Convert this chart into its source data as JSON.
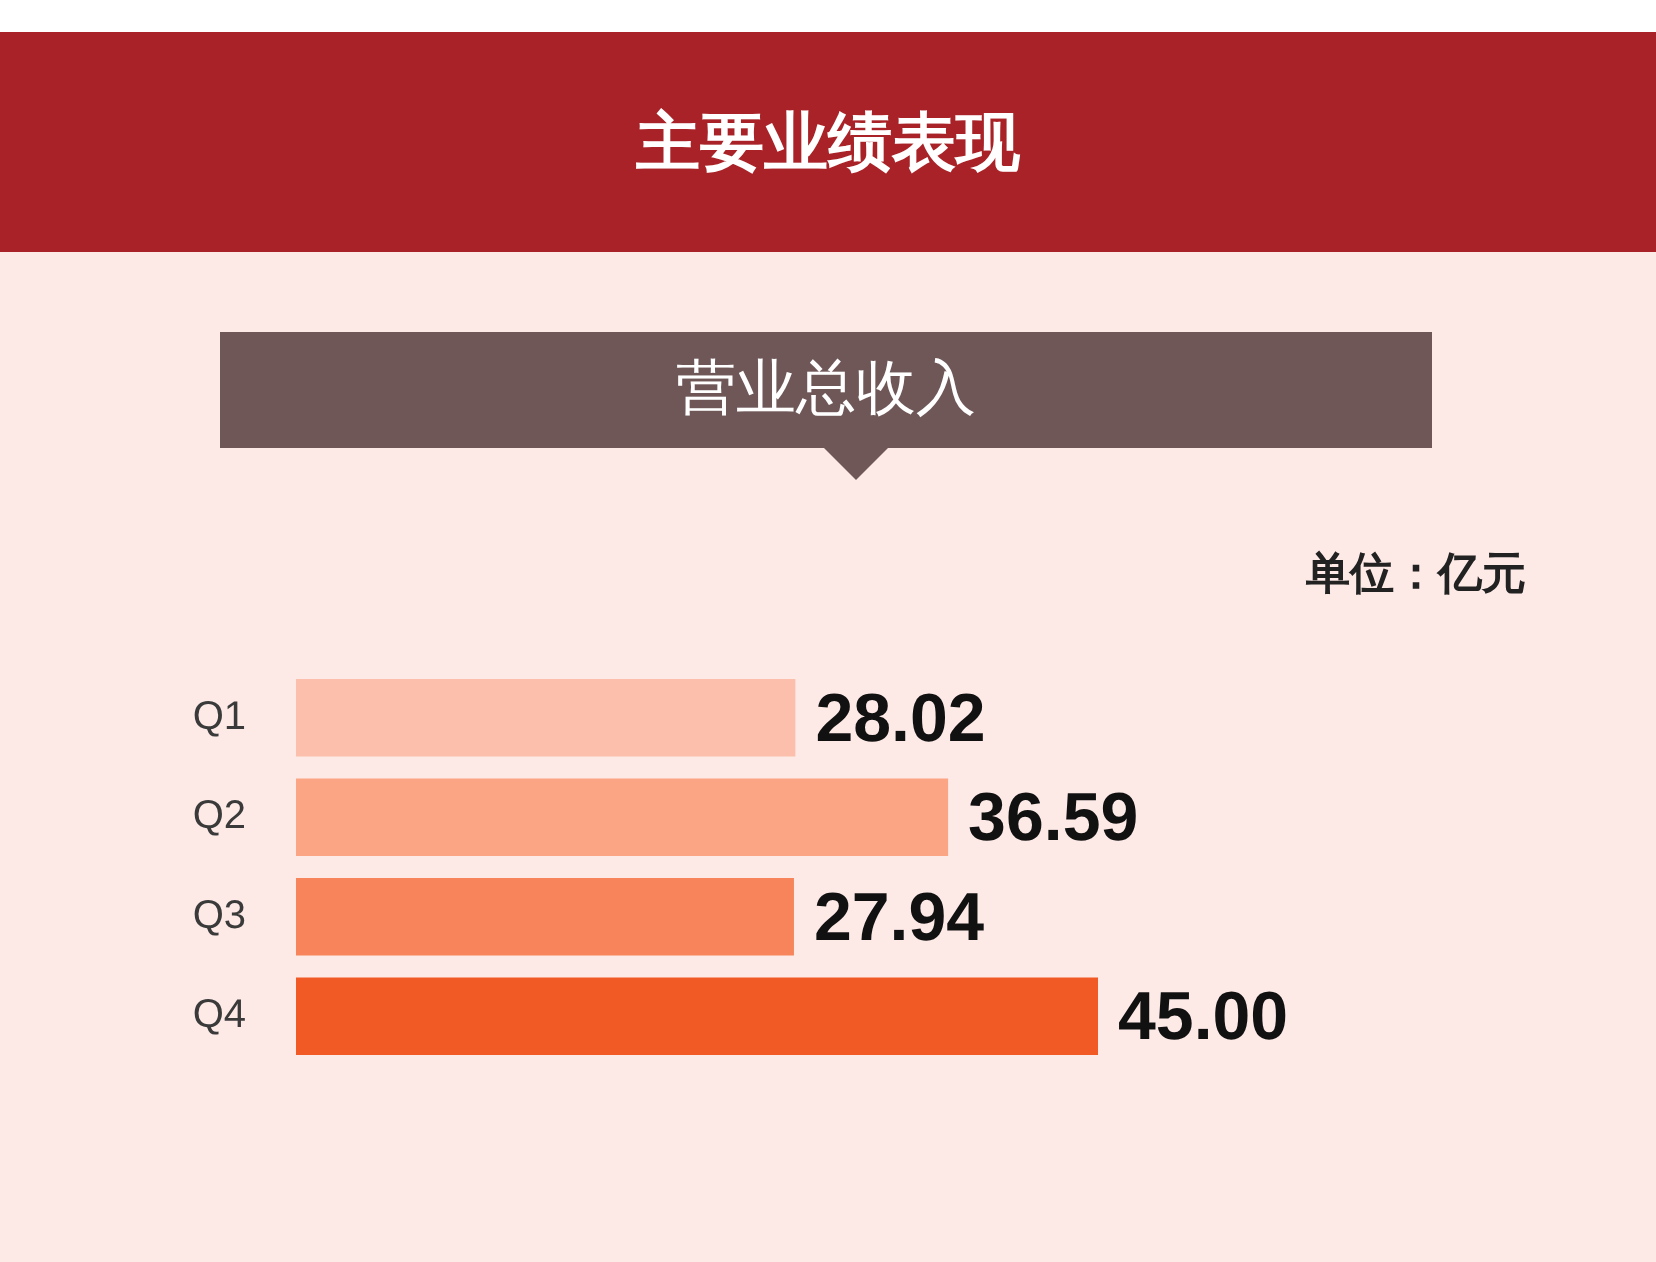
{
  "chart_data": {
    "type": "bar",
    "orientation": "horizontal",
    "title": "主要业绩表现",
    "subtitle": "营业总收入",
    "annotations": [
      "单位：亿元"
    ],
    "categories": [
      "Q1",
      "Q2",
      "Q3",
      "Q4"
    ],
    "values": [
      28.02,
      36.59,
      27.94,
      45.0
    ],
    "colors": [
      "#fbbfab",
      "#fba584",
      "#f7845b",
      "#f15a24"
    ],
    "value_labels": [
      "28.02",
      "36.59",
      "27.94",
      "45.00"
    ],
    "tick_labels": "y"
  }
}
